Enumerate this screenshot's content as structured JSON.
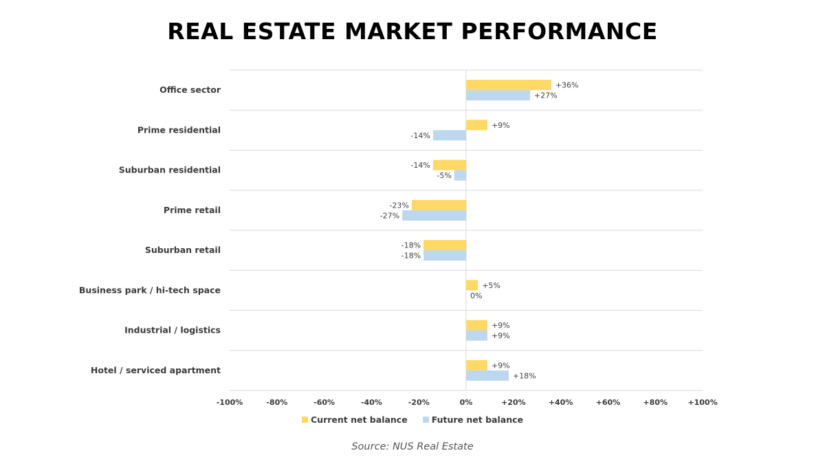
{
  "chart_data": {
    "type": "bar",
    "orientation": "horizontal",
    "title": "REAL ESTATE MARKET PERFORMANCE",
    "categories": [
      "Office sector",
      "Prime residential",
      "Suburban residential",
      "Prime retail",
      "Suburban retail",
      "Business park / hi-tech space",
      "Industrial / logistics",
      "Hotel / serviced apartment"
    ],
    "series": [
      {
        "name": "Current net balance",
        "color": "#FFD966",
        "values": [
          36,
          9,
          -14,
          -23,
          -18,
          5,
          9,
          9
        ],
        "labels": [
          "+36%",
          "+9%",
          "-14%",
          "-23%",
          "-18%",
          "+5%",
          "+9%",
          "+9%"
        ]
      },
      {
        "name": "Future net balance",
        "color": "#BDD7EE",
        "values": [
          27,
          -14,
          -5,
          -27,
          -18,
          0,
          9,
          18
        ],
        "labels": [
          "+27%",
          "-14%",
          "-5%",
          "-27%",
          "-18%",
          "0%",
          "+9%",
          "+18%"
        ]
      }
    ],
    "xlim": [
      -100,
      100
    ],
    "xticks": [
      -100,
      -80,
      -60,
      -40,
      -20,
      0,
      20,
      40,
      60,
      80,
      100
    ],
    "xtick_labels": [
      "-100%",
      "-80%",
      "-60%",
      "-40%",
      "-20%",
      "0%",
      "+20%",
      "+40%",
      "+60%",
      "+80%",
      "+100%"
    ],
    "xlabel": "",
    "ylabel": "",
    "grid": "horizontal category separators",
    "legend_position": "bottom",
    "source": "Source: NUS Real Estate"
  }
}
